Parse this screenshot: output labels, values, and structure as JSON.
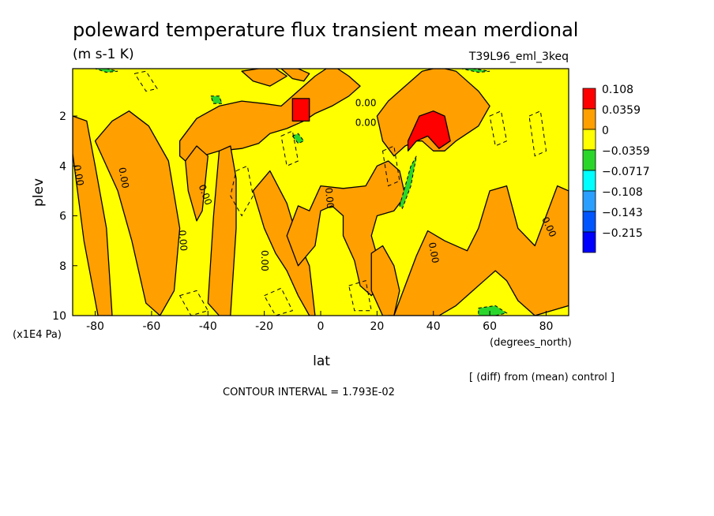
{
  "chart_data": {
    "type": "heatmap",
    "title": "poleward temperature flux transient mean merdional",
    "units": "(m s-1 K)",
    "run_label": "T39L96_eml_3keq",
    "xlabel": "lat",
    "x_unit_label": "(degrees_north)",
    "ylabel": "plev",
    "y_unit_label": "(x1E4 Pa)",
    "xlim": [
      -88,
      88
    ],
    "ylim": [
      10,
      0.1
    ],
    "x_ticks": [
      "-80",
      "-60",
      "-40",
      "-20",
      "0",
      "20",
      "40",
      "60",
      "80"
    ],
    "x_tick_values": [
      -80,
      -60,
      -40,
      -20,
      0,
      20,
      40,
      60,
      80
    ],
    "y_ticks": [
      "2",
      "4",
      "6",
      "8",
      "10"
    ],
    "y_tick_values": [
      2,
      4,
      6,
      8,
      10
    ],
    "legend": {
      "placement": "right",
      "labels": [
        "0.108",
        "0.0359",
        "0",
        "−0.0359",
        "−0.0717",
        "−0.108",
        "−0.143",
        "−0.215"
      ],
      "colors": [
        "#ff0000",
        "#ff9f00",
        "#ffff00",
        "#2bd62b",
        "#00ffff",
        "#2b9fff",
        "#0055ff",
        "#0000ff"
      ]
    },
    "palette": {
      "pos_high": "#ff0000",
      "pos": "#ff9f00",
      "zero": "#ffff00",
      "neg": "#2bd62b",
      "neg2": "#00ffff"
    },
    "contour_labels": [
      "0.00",
      "0.00",
      "0.00",
      "0.00",
      "0.00",
      "0.00",
      "0.00",
      "0.00",
      "0.00",
      "0.00"
    ],
    "orange_regions": [
      {
        "x": [
          -88,
          -83,
          -80,
          -76,
          -74,
          -79,
          -84,
          -88
        ],
        "y": [
          2.0,
          2.2,
          4.0,
          6.5,
          10.0,
          10.0,
          7.0,
          3.5
        ]
      },
      {
        "x": [
          -80,
          -74,
          -68,
          -61,
          -54,
          -50,
          -52,
          -57,
          -62,
          -67,
          -72
        ],
        "y": [
          3.0,
          2.2,
          1.8,
          2.4,
          3.8,
          6.5,
          9.0,
          10.0,
          9.5,
          7.0,
          5.0
        ]
      },
      {
        "x": [
          -50,
          -44,
          -36,
          -28,
          -20,
          -14,
          -10,
          -6,
          -2,
          2,
          6,
          10,
          14,
          10,
          4,
          -2,
          -6,
          -12,
          -18,
          -22,
          -28,
          -36,
          -42,
          -46,
          -50
        ],
        "y": [
          3.0,
          2.1,
          1.6,
          1.4,
          1.5,
          1.6,
          1.2,
          0.8,
          0.4,
          0.1,
          0.1,
          0.4,
          0.8,
          1.2,
          1.6,
          1.9,
          2.2,
          2.5,
          2.7,
          3.1,
          3.3,
          3.4,
          3.6,
          4.0,
          3.6
        ]
      },
      {
        "x": [
          -48,
          -44,
          -40,
          -42,
          -44,
          -47
        ],
        "y": [
          3.8,
          3.2,
          3.6,
          5.8,
          6.2,
          5.0
        ]
      },
      {
        "x": [
          -36,
          -32,
          -30,
          -30,
          -32,
          -36,
          -40,
          -38
        ],
        "y": [
          3.4,
          3.2,
          4.5,
          6.5,
          10.0,
          10.0,
          9.5,
          6.0
        ]
      },
      {
        "x": [
          -24,
          -18,
          -12,
          -8,
          -4,
          -2,
          -4,
          -8,
          -12,
          -16,
          -20
        ],
        "y": [
          5.0,
          4.2,
          5.5,
          7.0,
          8.0,
          10.0,
          10.0,
          9.2,
          8.2,
          7.5,
          6.5
        ]
      },
      {
        "x": [
          -12,
          -8,
          -4,
          0,
          8,
          16,
          20,
          24,
          28,
          30,
          26,
          20,
          18,
          20,
          22,
          18,
          14,
          12,
          8,
          8,
          4,
          0,
          -2,
          -8
        ],
        "y": [
          6.8,
          5.6,
          5.8,
          4.8,
          4.9,
          4.8,
          4.0,
          3.8,
          4.2,
          5.2,
          5.8,
          6.0,
          6.8,
          7.6,
          8.6,
          9.2,
          8.8,
          7.8,
          6.8,
          6.0,
          5.6,
          5.8,
          7.2,
          8.0
        ]
      },
      {
        "x": [
          18,
          22,
          26,
          28,
          26,
          22,
          18
        ],
        "y": [
          7.5,
          7.2,
          8.0,
          9.0,
          10.0,
          10.0,
          9.0
        ]
      },
      {
        "x": [
          26,
          30,
          34,
          38,
          44,
          52,
          56,
          60,
          66,
          70,
          76,
          80,
          84,
          88,
          88,
          76,
          70,
          66,
          62,
          58,
          54,
          48,
          42,
          36,
          30,
          24
        ],
        "y": [
          10.0,
          8.8,
          7.6,
          6.6,
          7.0,
          7.4,
          6.5,
          5.0,
          4.8,
          6.5,
          7.2,
          6.0,
          4.8,
          5.0,
          9.6,
          10.0,
          9.4,
          8.6,
          8.2,
          8.6,
          9.0,
          9.6,
          10.0,
          10.0,
          10.0,
          10.0
        ]
      },
      {
        "x": [
          20,
          24,
          30,
          36,
          40,
          44,
          48,
          52,
          56,
          60,
          56,
          48,
          44,
          40,
          36,
          34,
          30,
          26,
          22
        ],
        "y": [
          2.0,
          1.4,
          0.8,
          0.2,
          0.1,
          0.1,
          0.2,
          0.6,
          1.0,
          1.6,
          2.4,
          3.0,
          3.4,
          3.4,
          3.0,
          3.0,
          3.2,
          3.6,
          3.0
        ]
      },
      {
        "x": [
          -28,
          -22,
          -16,
          -12,
          -18,
          -24
        ],
        "y": [
          0.2,
          0.1,
          0.1,
          0.4,
          0.8,
          0.6
        ]
      },
      {
        "x": [
          -14,
          -8,
          -4,
          -6,
          -10
        ],
        "y": [
          0.1,
          0.1,
          0.3,
          0.6,
          0.5
        ]
      }
    ],
    "red_regions": [
      {
        "x": [
          -10,
          -4,
          -4,
          -10
        ],
        "y": [
          1.3,
          1.3,
          2.2,
          2.2
        ]
      },
      {
        "x": [
          31,
          35,
          40,
          44,
          46,
          42,
          38,
          34,
          31
        ],
        "y": [
          3.0,
          2.0,
          1.8,
          2.0,
          3.0,
          3.3,
          2.8,
          3.0,
          3.4
        ]
      }
    ],
    "green_regions": [
      {
        "x": [
          28,
          32,
          34,
          32,
          29
        ],
        "y": [
          5.6,
          4.0,
          3.6,
          4.8,
          5.7
        ]
      },
      {
        "x": [
          -39,
          -36,
          -35,
          -38
        ],
        "y": [
          1.2,
          1.2,
          1.5,
          1.5
        ]
      },
      {
        "x": [
          -10,
          -8,
          -6,
          -8
        ],
        "y": [
          2.8,
          2.7,
          3.0,
          3.1
        ]
      },
      {
        "x": [
          56,
          62,
          66,
          62,
          56
        ],
        "y": [
          9.7,
          9.6,
          9.9,
          10.0,
          10.0
        ]
      },
      {
        "x": [
          50,
          54,
          60,
          56
        ],
        "y": [
          0.1,
          0.1,
          0.2,
          0.25
        ]
      },
      {
        "x": [
          -80,
          -76,
          -72,
          -76
        ],
        "y": [
          0.1,
          0.1,
          0.2,
          0.25
        ]
      }
    ]
  },
  "footer": {
    "note": "[ (diff) from (mean) control ]",
    "contour_interval": "CONTOUR INTERVAL = 1.793E-02"
  }
}
